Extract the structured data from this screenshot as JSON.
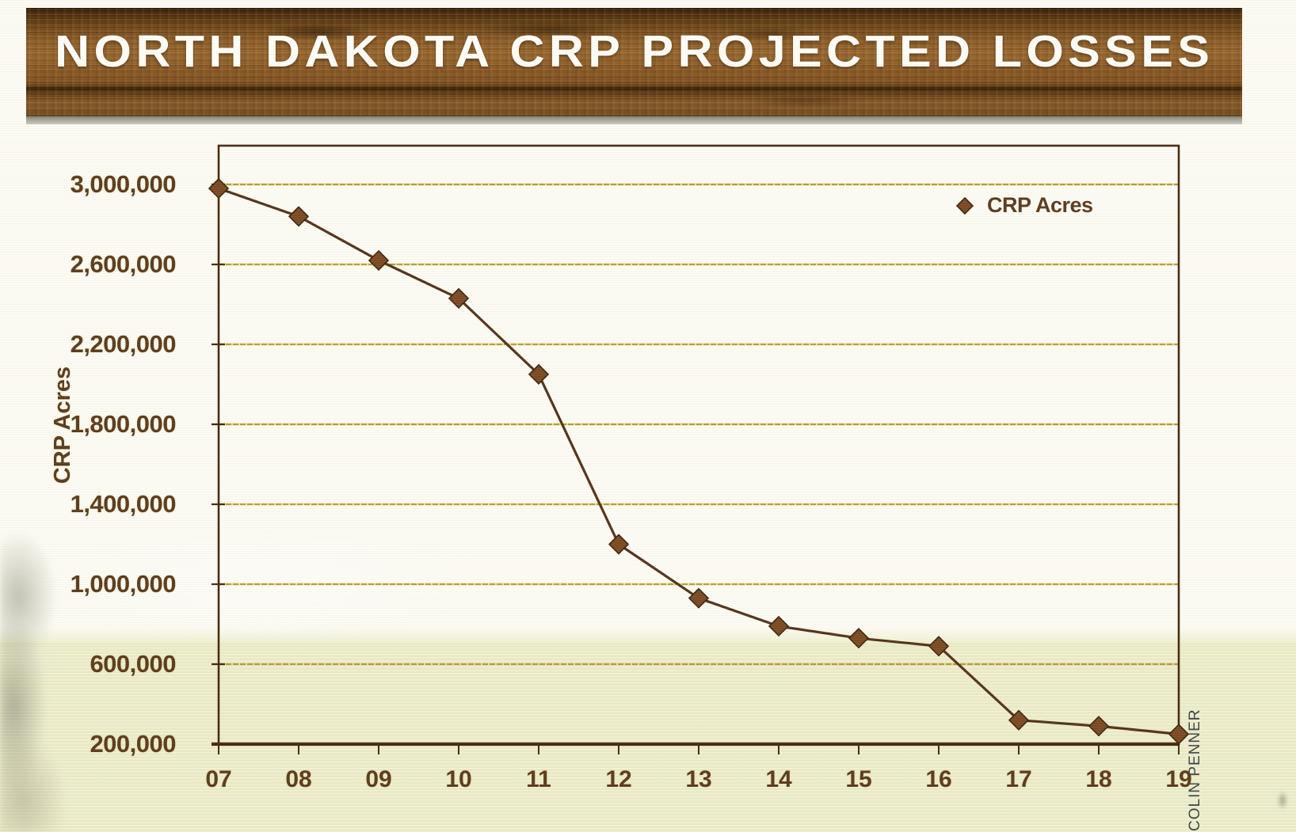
{
  "title": "NORTH DAKOTA CRP PROJECTED LOSSES",
  "credit": "COLIN PENNER",
  "chart_data": {
    "type": "line",
    "title": "NORTH DAKOTA CRP PROJECTED LOSSES",
    "xlabel": "",
    "ylabel": "CRP Acres",
    "marker": "diamond",
    "grid": true,
    "legend_position": "top-right-inside",
    "x_categories": [
      "07",
      "08",
      "09",
      "10",
      "11",
      "12",
      "13",
      "14",
      "15",
      "16",
      "17",
      "18",
      "19"
    ],
    "series": [
      {
        "name": "CRP Acres",
        "values": [
          2980000,
          2840000,
          2620000,
          2430000,
          2050000,
          1200000,
          930000,
          790000,
          730000,
          690000,
          320000,
          290000,
          250000
        ]
      }
    ],
    "y_tick_values": [
      3000000,
      2600000,
      2200000,
      1800000,
      1400000,
      1000000,
      600000,
      200000
    ],
    "y_tick_labels": [
      "3,000,000",
      "2,600,000",
      "2,200,000",
      "1,800,000",
      "1,400,000",
      "1,000,000",
      "600,000",
      "200,000"
    ],
    "ylim": [
      200000,
      3200000
    ],
    "colors": {
      "line": "#53321a",
      "marker_fill": "#7b4a22",
      "marker_edge": "#3f240e",
      "grid_core": "#8a7518",
      "grid_glow": "#e9da7e",
      "axis": "#46280f",
      "label": "#5b3a1c"
    }
  }
}
